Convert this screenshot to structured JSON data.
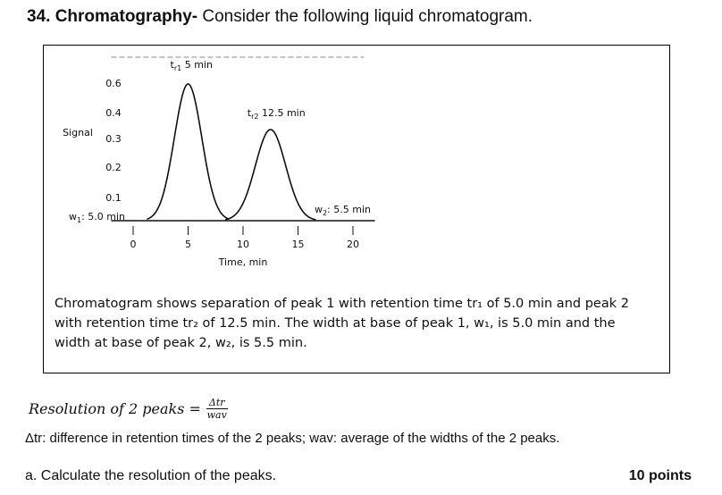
{
  "problem": {
    "number": "34.",
    "topic": "Chromatography-",
    "prompt": "Consider the following liquid chromatogram."
  },
  "chart_data": {
    "type": "line",
    "xlabel": "Time, min",
    "ylabel": "Signal",
    "x_ticks": [
      "0",
      "5",
      "10",
      "15",
      "20"
    ],
    "y_ticks": [
      "0.6",
      "0.4",
      "0.3",
      "0.2",
      "0.1"
    ],
    "xlim": [
      -2,
      22
    ],
    "ylim": [
      0,
      0.65
    ],
    "peaks": [
      {
        "retention_time": 5.0,
        "height": 0.6,
        "base_width": 5.0
      },
      {
        "retention_time": 12.5,
        "height": 0.4,
        "base_width": 5.5
      }
    ],
    "annotations": {
      "peak1_label": "t",
      "peak1_sub": "r1",
      "peak1_value": " 5 min",
      "peak2_label": "t",
      "peak2_sub": "r2",
      "peak2_value": " 12.5 min",
      "w1_label": "w",
      "w1_sub": "1",
      "w1_value": ": 5.0 min",
      "w2_label": "w",
      "w2_sub": "2",
      "w2_value": ": 5.5 min"
    },
    "grid": false
  },
  "caption": "Chromatogram shows separation of peak 1 with retention time tr₁ of 5.0 min and peak 2 with retention time tr₂ of 12.5 min.  The width at base of peak 1, w₁, is 5.0 min and the width at base of peak 2, w₂, is 5.5 min.",
  "formula": {
    "lhs": "Resolution of 2 peaks =",
    "numerator": "Δtr",
    "denominator": "wav"
  },
  "definition": "Δtr: difference in retention times of the 2 peaks; wav: average of the widths of the 2 peaks.",
  "question": {
    "text": "a. Calculate the resolution of the peaks.",
    "points": "10 points"
  }
}
